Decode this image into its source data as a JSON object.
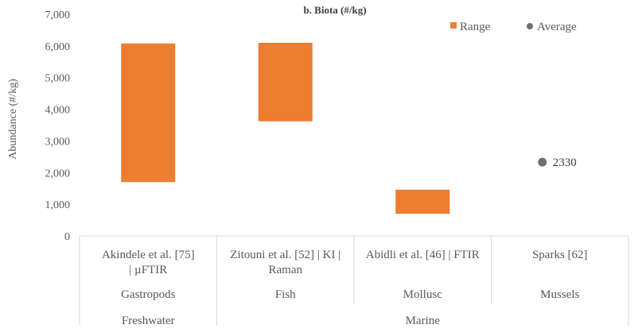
{
  "chart_data": {
    "type": "bar",
    "title": "b. Biota (#/kg)",
    "ylabel": "Abundance (#/kg)",
    "xlabel": "",
    "ylim": [
      0,
      7000
    ],
    "yticks": [
      0,
      1000,
      2000,
      3000,
      4000,
      5000,
      6000,
      7000
    ],
    "ytick_labels": [
      "0",
      "1,000",
      "2,000",
      "3,000",
      "4,000",
      "5,000",
      "6,000",
      "7,000"
    ],
    "grid": false,
    "legend_position": "top-right",
    "legend": [
      {
        "label": "Range",
        "marker": "square",
        "color": "#ED7D31"
      },
      {
        "label": "Average",
        "marker": "circle",
        "color": "#6E6E78"
      }
    ],
    "categories": [
      {
        "lines": [
          "Akindele et al. [75]",
          "| µFTIR"
        ],
        "organism": "Gastropods",
        "group": "Freshwater"
      },
      {
        "lines": [
          "Zitouni et al. [52] | KI |",
          "Raman"
        ],
        "organism": "Fish",
        "group": "Marine"
      },
      {
        "lines": [
          "Abidli et al. [46]  | FTIR"
        ],
        "organism": "Mollusc",
        "group": "Marine"
      },
      {
        "lines": [
          "Sparks [62]"
        ],
        "organism": "Mussels",
        "group": "Marine"
      }
    ],
    "series": [
      {
        "name": "Range",
        "kind": "floating_bar",
        "color": "#ED7D31",
        "low": [
          1700,
          3620,
          700,
          null
        ],
        "high": [
          6080,
          6100,
          1460,
          null
        ]
      },
      {
        "name": "Average",
        "kind": "point",
        "color": "#6E6E78",
        "values": [
          null,
          null,
          null,
          2330
        ],
        "error": [
          null,
          null,
          null,
          100
        ],
        "data_labels": [
          "",
          "",
          "",
          "2330"
        ]
      }
    ],
    "group_labels": [
      "Freshwater",
      "Marine"
    ]
  }
}
